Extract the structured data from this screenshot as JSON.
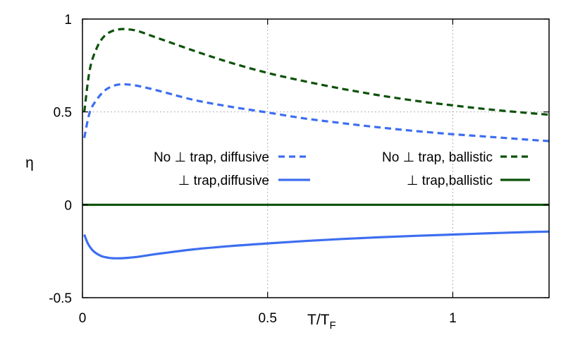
{
  "chart_data": {
    "type": "line",
    "title": "",
    "xlabel": "T/T",
    "xlabel_subscript": "F",
    "ylabel": "η",
    "xlim": [
      0,
      1.26
    ],
    "ylim": [
      -0.5,
      1.0
    ],
    "xticks": [
      {
        "value": 0,
        "label": "0"
      },
      {
        "value": 0.5,
        "label": "0.5"
      },
      {
        "value": 1,
        "label": "1"
      }
    ],
    "yticks": [
      {
        "value": -0.5,
        "label": "-0.5"
      },
      {
        "value": 0,
        "label": "0"
      },
      {
        "value": 0.5,
        "label": "0.5"
      },
      {
        "value": 1,
        "label": "1"
      }
    ],
    "grid": {
      "x": [
        0.5,
        1.0
      ],
      "y": [
        0.5
      ]
    },
    "series": [
      {
        "name": "No ⊥ trap, diffusive",
        "color": "#3d6ef0",
        "dash": true,
        "x": [
          0.005,
          0.02,
          0.04,
          0.06,
          0.08,
          0.1,
          0.12,
          0.15,
          0.2,
          0.3,
          0.4,
          0.5,
          0.6,
          0.7,
          0.8,
          0.9,
          1.0,
          1.1,
          1.2,
          1.26
        ],
        "y": [
          0.36,
          0.5,
          0.57,
          0.615,
          0.638,
          0.648,
          0.648,
          0.64,
          0.617,
          0.565,
          0.528,
          0.497,
          0.465,
          0.44,
          0.417,
          0.397,
          0.38,
          0.366,
          0.351,
          0.343
        ]
      },
      {
        "name": "No ⊥ trap, ballistic",
        "color": "#0b5209",
        "dash": true,
        "x": [
          0.005,
          0.02,
          0.04,
          0.06,
          0.08,
          0.1,
          0.12,
          0.15,
          0.2,
          0.3,
          0.4,
          0.5,
          0.6,
          0.7,
          0.8,
          0.9,
          1.0,
          1.1,
          1.2,
          1.26
        ],
        "y": [
          0.5,
          0.73,
          0.85,
          0.91,
          0.935,
          0.945,
          0.945,
          0.935,
          0.9,
          0.83,
          0.765,
          0.71,
          0.665,
          0.625,
          0.59,
          0.56,
          0.535,
          0.513,
          0.495,
          0.485
        ]
      },
      {
        "name": "⊥ trap,diffusive",
        "color": "#3d6ef0",
        "dash": false,
        "x": [
          0.005,
          0.015,
          0.03,
          0.05,
          0.07,
          0.09,
          0.12,
          0.15,
          0.2,
          0.3,
          0.4,
          0.5,
          0.6,
          0.7,
          0.8,
          0.9,
          1.0,
          1.1,
          1.2,
          1.26
        ],
        "y": [
          -0.16,
          -0.21,
          -0.25,
          -0.275,
          -0.285,
          -0.288,
          -0.286,
          -0.28,
          -0.265,
          -0.24,
          -0.222,
          -0.208,
          -0.195,
          -0.184,
          -0.175,
          -0.167,
          -0.16,
          -0.153,
          -0.147,
          -0.144
        ]
      },
      {
        "name": "⊥ trap,ballistic",
        "color": "#0b5209",
        "dash": false,
        "x": [
          0.0,
          1.26
        ],
        "y": [
          0.0,
          0.0
        ]
      }
    ],
    "legend": {
      "placement": "middle",
      "entries_left": [
        "No ⊥ trap, diffusive",
        "⊥ trap,diffusive"
      ],
      "entries_right": [
        "No ⊥ trap, ballistic",
        "⊥ trap,ballistic"
      ]
    }
  }
}
